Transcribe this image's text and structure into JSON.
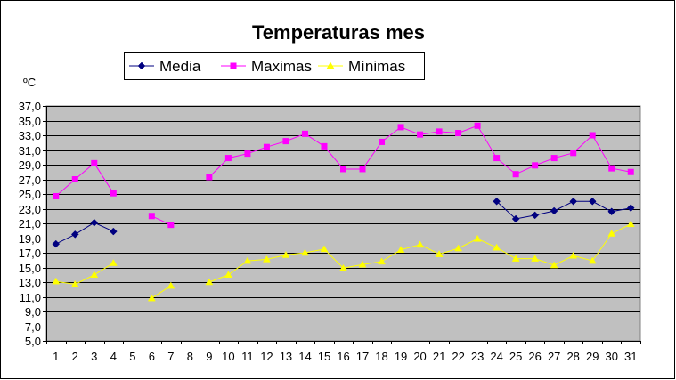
{
  "chart_data": {
    "type": "line",
    "title": "Temperaturas mes",
    "ylabel": "ºC",
    "ylim": [
      5.0,
      37.0
    ],
    "ytick_step": 2.0,
    "ytick_labels": [
      "5,0",
      "7,0",
      "9,0",
      "11,0",
      "13,0",
      "15,0",
      "17,0",
      "19,0",
      "21,0",
      "23,0",
      "25,0",
      "27,0",
      "29,0",
      "31,0",
      "33,0",
      "35,0",
      "37,0"
    ],
    "x": [
      "1",
      "2",
      "3",
      "4",
      "5",
      "6",
      "7",
      "8",
      "9",
      "10",
      "11",
      "12",
      "13",
      "14",
      "15",
      "16",
      "17",
      "18",
      "19",
      "20",
      "21",
      "22",
      "23",
      "24",
      "25",
      "26",
      "27",
      "28",
      "29",
      "30",
      "31"
    ],
    "grid": "horizontal",
    "plot_background": "#c0c0c0",
    "legend_position": "top",
    "series": [
      {
        "name": "Media",
        "color": "#000080",
        "marker": "diamond",
        "values": [
          18.2,
          19.5,
          21.1,
          19.9,
          null,
          null,
          null,
          null,
          null,
          null,
          null,
          null,
          null,
          null,
          null,
          null,
          null,
          null,
          null,
          null,
          null,
          null,
          null,
          24.0,
          21.6,
          22.1,
          22.7,
          24.0,
          24.0,
          22.6,
          23.1
        ]
      },
      {
        "name": "Maximas",
        "color": "#ff00ff",
        "marker": "square",
        "values": [
          24.7,
          27.0,
          29.2,
          25.1,
          null,
          22.0,
          20.8,
          null,
          27.3,
          29.9,
          30.5,
          31.4,
          32.2,
          33.2,
          31.5,
          28.4,
          28.4,
          32.1,
          34.1,
          33.1,
          33.5,
          33.3,
          34.3,
          29.9,
          27.7,
          28.9,
          29.9,
          30.6,
          33.0,
          28.5,
          28.0
        ]
      },
      {
        "name": "Mínimas",
        "color": "#ffff00",
        "marker": "triangle",
        "values": [
          13.1,
          12.7,
          14.0,
          15.6,
          null,
          10.8,
          12.5,
          null,
          13.0,
          14.0,
          15.9,
          16.1,
          16.7,
          17.0,
          17.5,
          14.9,
          15.4,
          15.8,
          17.4,
          18.1,
          16.8,
          17.6,
          18.9,
          17.7,
          16.2,
          16.2,
          15.3,
          16.6,
          15.9,
          19.6,
          20.9
        ]
      }
    ]
  }
}
